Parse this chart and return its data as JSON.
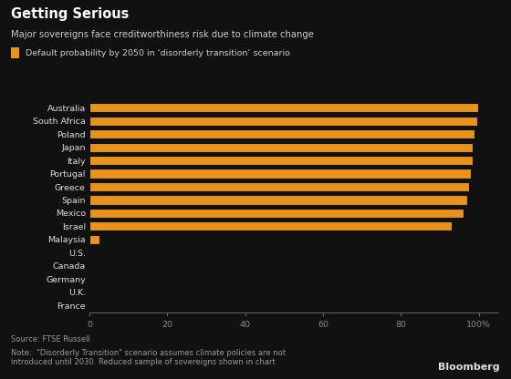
{
  "title": "Getting Serious",
  "subtitle": "Major sovereigns face creditworthiness risk due to climate change",
  "legend_label": "Default probability by 2050 in ‘disorderly transition’ scenario",
  "source": "Source: FTSE Russell",
  "note": "Note:  \"Disorderly Transition\" scenario assumes climate policies are not\nintroduced until 2030. Reduced sample of sovereigns shown in chart",
  "bloomberg": "Bloomberg",
  "categories": [
    "France",
    "U.K.",
    "Germany",
    "Canada",
    "U.S.",
    "Malaysia",
    "Israel",
    "Mexico",
    "Spain",
    "Greece",
    "Portugal",
    "Italy",
    "Japan",
    "Poland",
    "South Africa",
    "Australia"
  ],
  "values": [
    0.3,
    0.3,
    0.3,
    0.3,
    0.3,
    2.5,
    93.0,
    96.0,
    97.0,
    97.5,
    98.0,
    98.5,
    98.5,
    99.0,
    99.5,
    99.8
  ],
  "bar_color": "#E8941A",
  "background_color": "#111111",
  "text_color": "#DDDDDD",
  "axis_color": "#888888",
  "title_color": "#FFFFFF",
  "subtitle_color": "#CCCCCC",
  "note_color": "#999999",
  "legend_color": "#CCCCCC",
  "xlim": [
    0,
    105
  ],
  "xticks": [
    0,
    20,
    40,
    60,
    80,
    100
  ],
  "xtick_labels": [
    "0",
    "20",
    "40",
    "60",
    "80",
    "100%"
  ]
}
